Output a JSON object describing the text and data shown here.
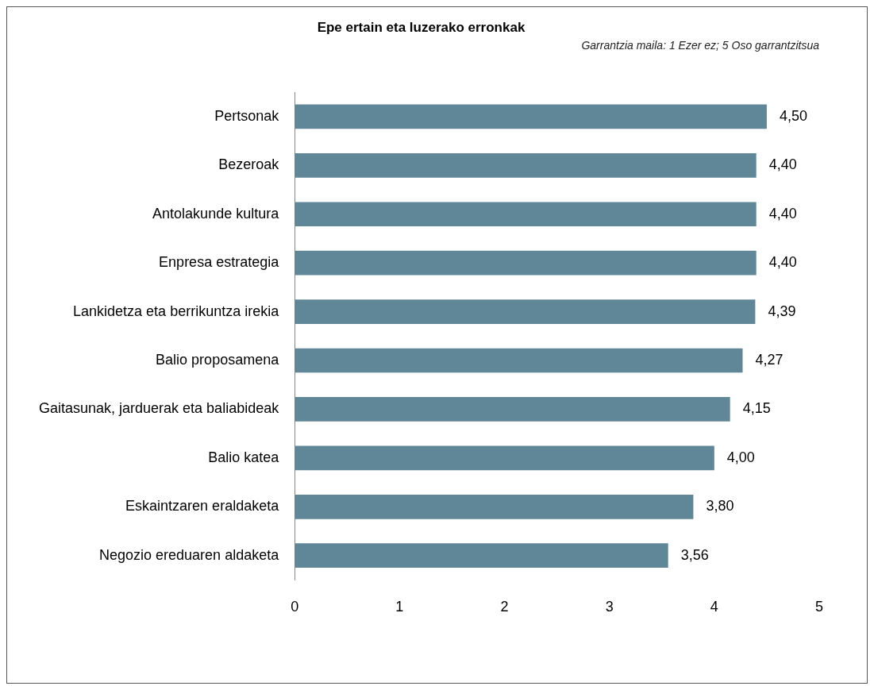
{
  "chart_data": {
    "type": "bar",
    "orientation": "horizontal",
    "title": "Epe ertain eta luzerako erronkak",
    "subtitle": "Garrantzia maila: 1 Ezer ez; 5 Oso garrantzitsua",
    "categories": [
      "Pertsonak",
      "Bezeroak",
      "Antolakunde kultura",
      "Enpresa estrategia",
      "Lankidetza eta berrikuntza irekia",
      "Balio proposamena",
      "Gaitasunak, jarduerak eta baliabideak",
      "Balio katea",
      "Eskaintzaren eraldaketa",
      "Negozio ereduaren aldaketa"
    ],
    "values": [
      4.5,
      4.4,
      4.4,
      4.4,
      4.39,
      4.27,
      4.15,
      4.0,
      3.8,
      3.56
    ],
    "value_labels": [
      "4,50",
      "4,40",
      "4,40",
      "4,40",
      "4,39",
      "4,27",
      "4,15",
      "4,00",
      "3,80",
      "3,56"
    ],
    "color": "#5f8797",
    "xlim": [
      0,
      5
    ],
    "xticks": [
      0,
      1,
      2,
      3,
      4,
      5
    ]
  }
}
